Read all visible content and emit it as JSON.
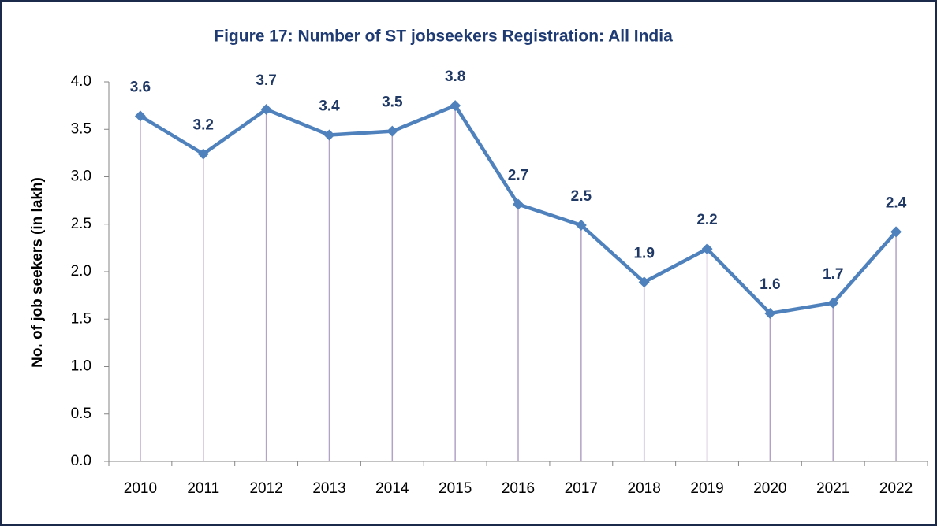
{
  "chart_data": {
    "type": "line",
    "title": "Figure 17: Number of ST jobseekers Registration: All India",
    "y_label": "No. of  job seekers (in lakh)",
    "categories": [
      "2010",
      "2011",
      "2012",
      "2013",
      "2014",
      "2015",
      "2016",
      "2017",
      "2018",
      "2019",
      "2020",
      "2021",
      "2022"
    ],
    "series": [
      {
        "name": "ST jobseekers",
        "color": "#4f81bd",
        "values": [
          3.64,
          3.24,
          3.71,
          3.44,
          3.48,
          3.75,
          2.71,
          2.49,
          1.89,
          2.24,
          1.56,
          1.67,
          2.42
        ],
        "value_labels": [
          "3.6",
          "3.2",
          "3.7",
          "3.4",
          "3.5",
          "3.8",
          "2.7",
          "2.5",
          "1.9",
          "2.2",
          "1.6",
          "1.7",
          "2.4"
        ]
      }
    ],
    "ylim": [
      0,
      4
    ],
    "yticks": [
      {
        "value": 0,
        "label": "0.0"
      },
      0.5,
      {
        "value": 1,
        "label": "1.0"
      },
      1.5,
      {
        "value": 2,
        "label": "2.0"
      },
      2.5,
      {
        "value": 3,
        "label": "3.0"
      },
      3.5,
      {
        "value": 4,
        "label": "4.0"
      }
    ],
    "grid": false,
    "drop_lines": true
  }
}
